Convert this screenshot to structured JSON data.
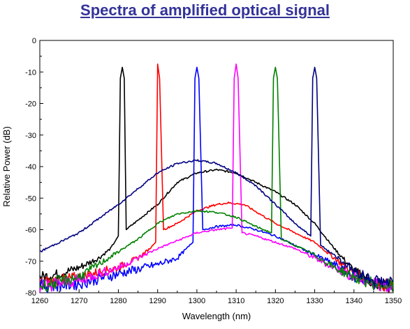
{
  "chart_data": {
    "type": "line",
    "title": "Spectra of amplified optical signal",
    "xlabel": "Wavelength (nm)",
    "ylabel": "Relative Power (dB)",
    "xlim": [
      1260,
      1350
    ],
    "ylim": [
      -80,
      0
    ],
    "xticks": [
      1260,
      1270,
      1280,
      1290,
      1300,
      1310,
      1320,
      1330,
      1340,
      1350
    ],
    "yticks": [
      0,
      -10,
      -20,
      -30,
      -40,
      -50,
      -60,
      -70,
      -80
    ],
    "grid": false,
    "legend": "none",
    "series": [
      {
        "color": "#000000",
        "peak": 1281,
        "x": [
          1260,
          1265,
          1270,
          1275,
          1278,
          1280,
          1280.5,
          1281,
          1281.5,
          1282,
          1285,
          1290,
          1295,
          1300,
          1305,
          1310,
          1315,
          1320,
          1325,
          1330,
          1335,
          1340,
          1345,
          1350
        ],
        "y": [
          -75,
          -74,
          -72,
          -69,
          -66,
          -62,
          -12,
          -8.5,
          -12,
          -60,
          -57,
          -52,
          -45,
          -42,
          -41,
          -42,
          -45,
          -48,
          -52,
          -58,
          -66,
          -73,
          -77,
          -78
        ]
      },
      {
        "color": "#ff0000",
        "peak": 1290,
        "x": [
          1260,
          1270,
          1280,
          1285,
          1288,
          1289.5,
          1290,
          1290.5,
          1291.5,
          1295,
          1300,
          1305,
          1308,
          1312,
          1316,
          1320,
          1325,
          1330,
          1335,
          1340,
          1345,
          1350
        ],
        "y": [
          -77,
          -75,
          -72,
          -69,
          -66,
          -64,
          -7.5,
          -12,
          -60,
          -58,
          -54,
          -52,
          -51.5,
          -52,
          -55,
          -58,
          -61,
          -64,
          -69,
          -74,
          -77,
          -78
        ]
      },
      {
        "color": "#0000ff",
        "peak": 1300,
        "x": [
          1260,
          1270,
          1280,
          1290,
          1295,
          1299,
          1299.5,
          1300,
          1300.5,
          1301.5,
          1305,
          1310,
          1315,
          1320,
          1325,
          1330,
          1335,
          1340,
          1345,
          1350
        ],
        "y": [
          -78,
          -77,
          -74,
          -71,
          -69,
          -64,
          -12,
          -8.5,
          -12,
          -60,
          -59,
          -58.5,
          -60,
          -62,
          -65,
          -68,
          -71,
          -75,
          -77,
          -78
        ]
      },
      {
        "color": "#ff00ff",
        "peak": 1310,
        "x": [
          1260,
          1270,
          1280,
          1290,
          1300,
          1305,
          1309,
          1309.5,
          1310,
          1310.5,
          1311.5,
          1315,
          1320,
          1325,
          1330,
          1335,
          1340,
          1345,
          1350
        ],
        "y": [
          -78,
          -76,
          -72,
          -66,
          -61,
          -60,
          -59.5,
          -12,
          -7.5,
          -12,
          -61,
          -62,
          -64,
          -66,
          -69,
          -72,
          -75,
          -77,
          -78
        ]
      },
      {
        "color": "#008000",
        "peak": 1320,
        "x": [
          1260,
          1270,
          1280,
          1285,
          1290,
          1295,
          1300,
          1305,
          1310,
          1315,
          1319,
          1319.5,
          1320,
          1320.5,
          1321.5,
          1325,
          1330,
          1335,
          1340,
          1345,
          1350
        ],
        "y": [
          -78,
          -75,
          -67,
          -63,
          -58,
          -55,
          -54,
          -54.5,
          -56,
          -59,
          -61,
          -12,
          -8.5,
          -12,
          -63,
          -65,
          -68,
          -72,
          -75,
          -77,
          -78
        ]
      },
      {
        "color": "#000080",
        "peak": 1330,
        "x": [
          1260,
          1270,
          1280,
          1285,
          1290,
          1295,
          1300,
          1305,
          1310,
          1315,
          1320,
          1325,
          1329,
          1329.5,
          1330,
          1330.5,
          1331.5,
          1335,
          1340,
          1345,
          1350
        ],
        "y": [
          -67,
          -61,
          -52,
          -47,
          -42,
          -39,
          -38,
          -39,
          -42,
          -46,
          -52,
          -58,
          -62,
          -12,
          -8.5,
          -12,
          -65,
          -68,
          -73,
          -76,
          -77
        ]
      }
    ]
  }
}
